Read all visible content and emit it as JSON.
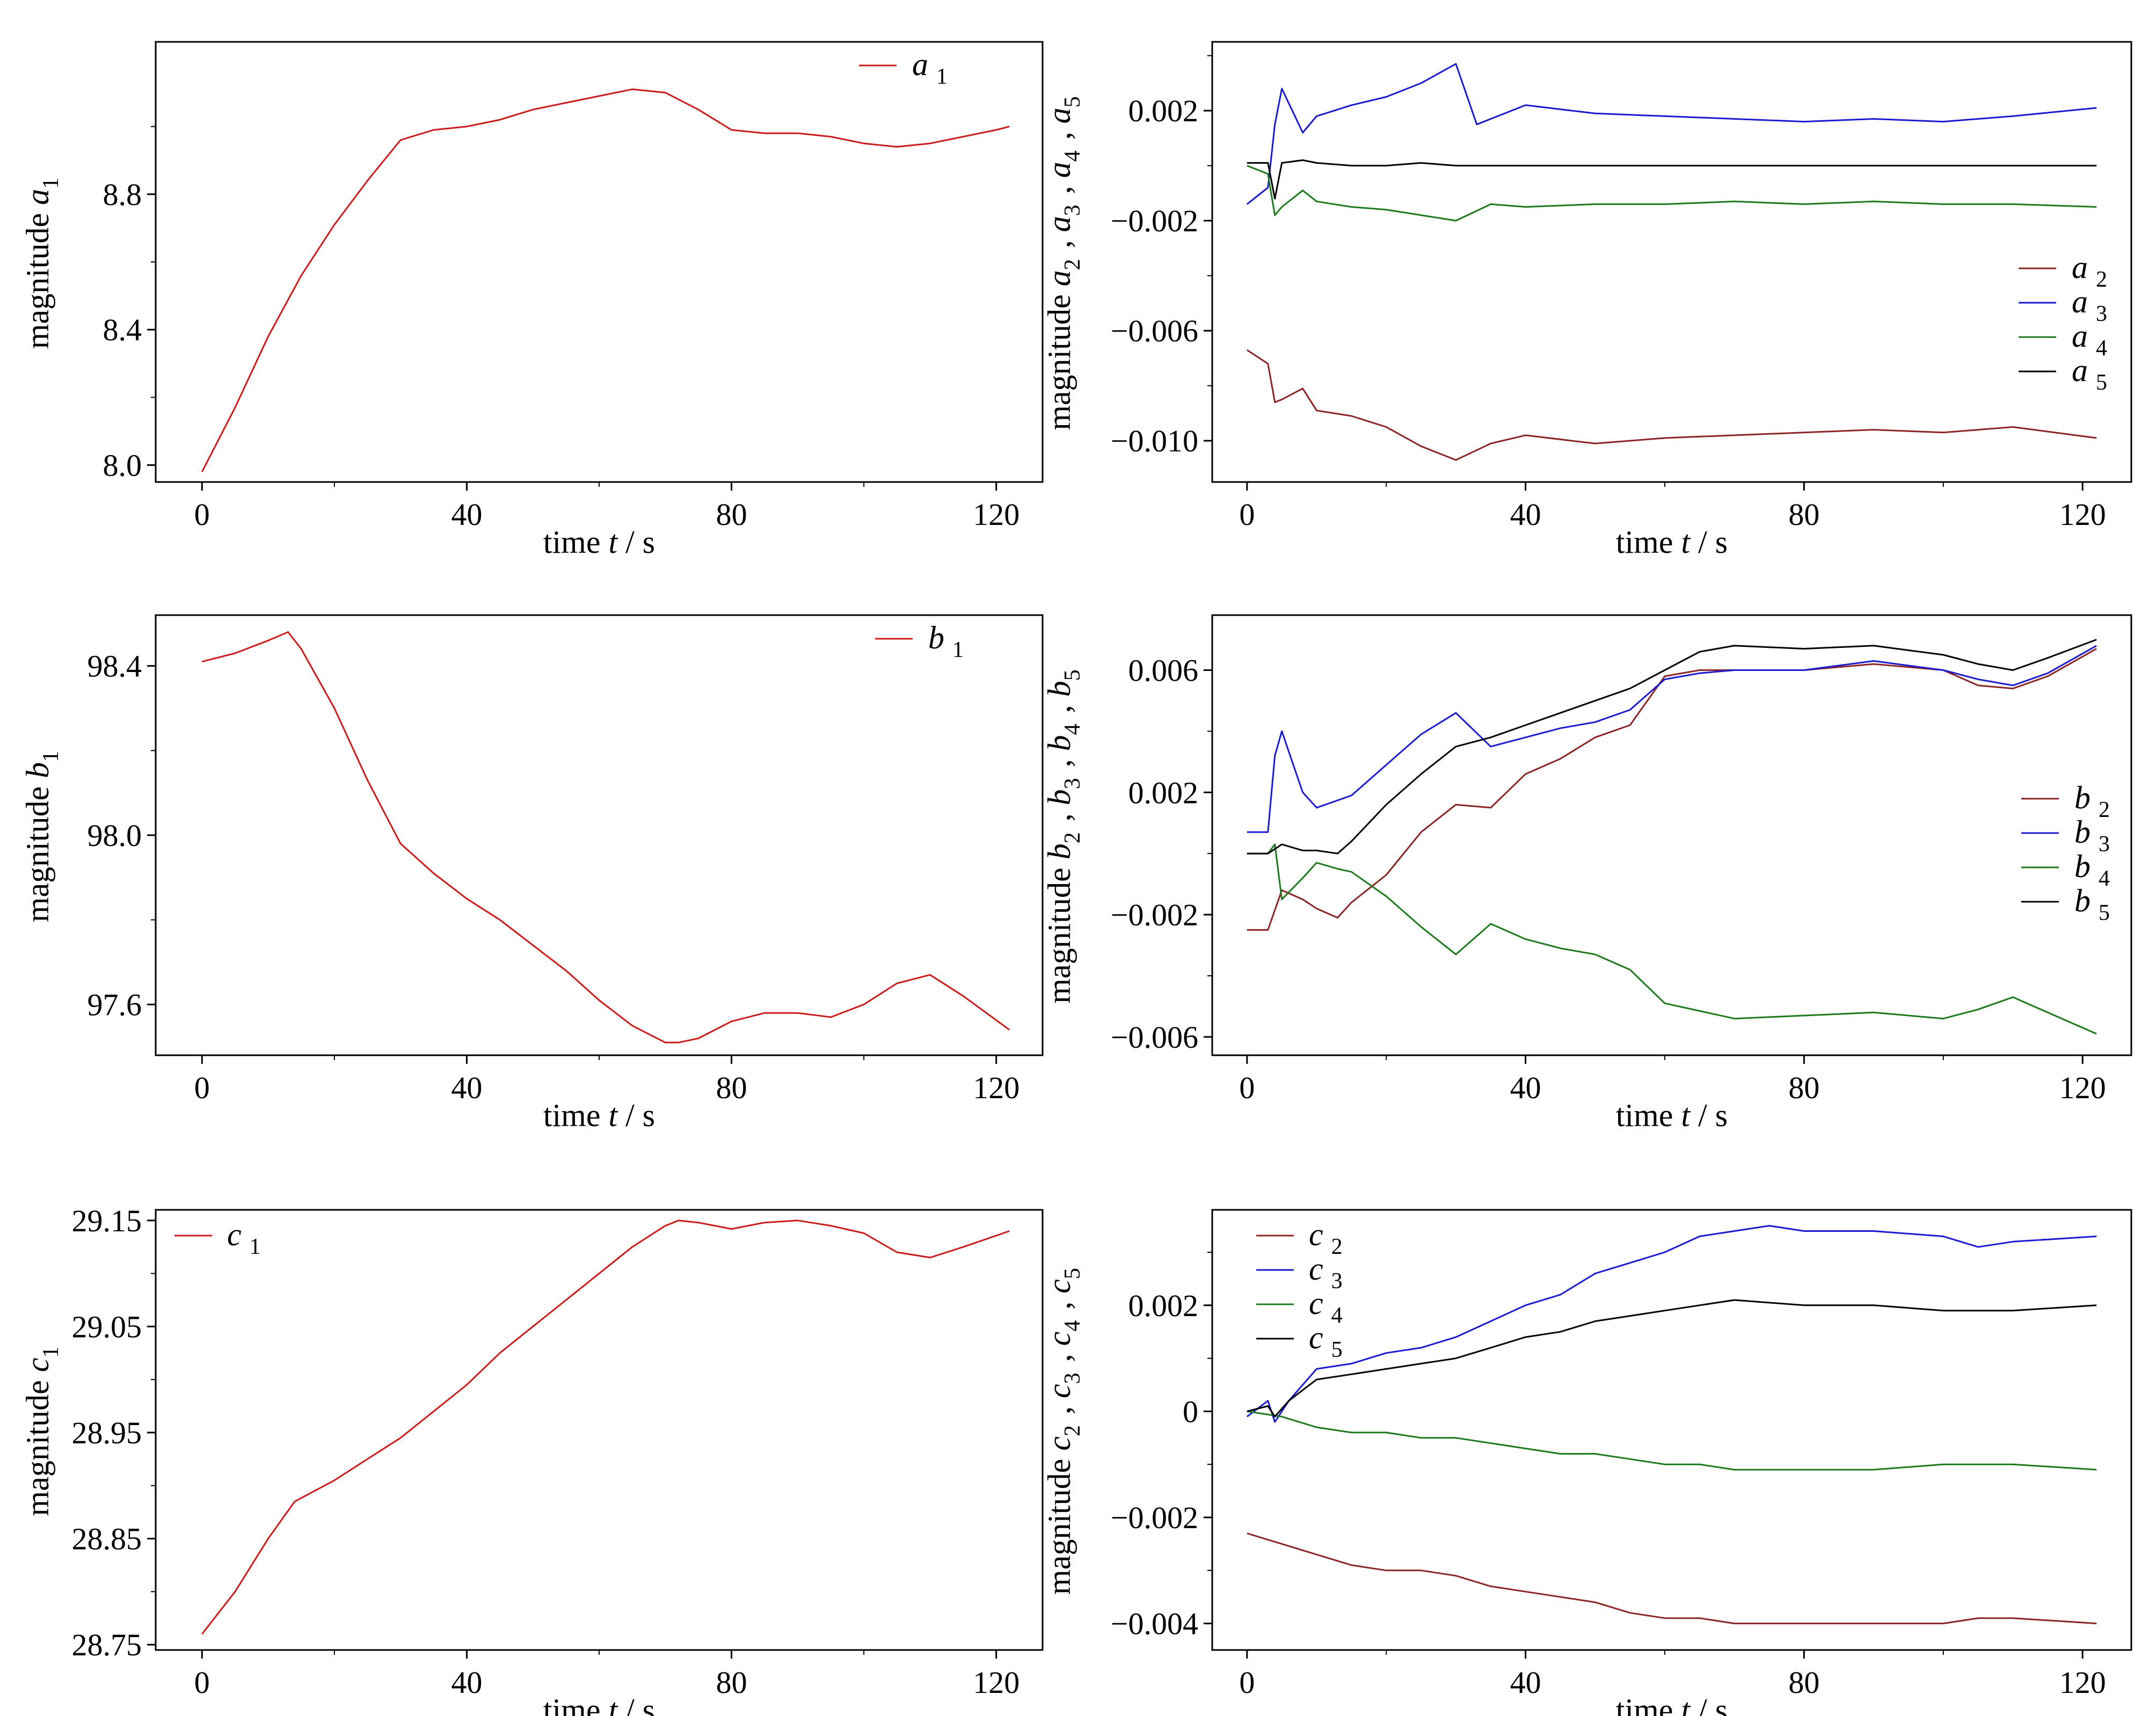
{
  "colors": {
    "red": "#cc1b1b",
    "dark_red": "#8b2525",
    "blue": "#1a1ad1",
    "green": "#1c7a1c",
    "black": "#000000"
  },
  "chart_data": [
    {
      "type": "line",
      "xlabel": "time t / s",
      "ylabel": "magnitude a1",
      "xlim": [
        -7,
        127
      ],
      "ylim": [
        7.95,
        9.25
      ],
      "x_ticks": [
        "0",
        "40",
        "80",
        "120"
      ],
      "y_ticks": [
        "8.0",
        "8.4",
        "8.8"
      ],
      "legend_position": "top-right",
      "series": [
        {
          "name": "a1",
          "color": "#cc1b1b",
          "x": [
            0,
            5,
            10,
            15,
            20,
            25,
            30,
            35,
            40,
            45,
            50,
            55,
            60,
            65,
            70,
            75,
            80,
            85,
            90,
            95,
            100,
            105,
            110,
            115,
            120,
            122
          ],
          "y": [
            7.98,
            8.17,
            8.38,
            8.56,
            8.71,
            8.84,
            8.96,
            8.99,
            9.0,
            9.02,
            9.05,
            9.07,
            9.09,
            9.11,
            9.1,
            9.05,
            8.99,
            8.98,
            8.98,
            8.97,
            8.95,
            8.94,
            8.95,
            8.97,
            8.99,
            9.0
          ]
        }
      ]
    },
    {
      "type": "line",
      "xlabel": "time t / s",
      "ylabel": "magnitude a2 , a3 , a4 , a5",
      "xlim": [
        -5,
        127
      ],
      "ylim": [
        -0.0115,
        0.0045
      ],
      "x_ticks": [
        "0",
        "40",
        "80",
        "120"
      ],
      "y_ticks": [
        "0.002",
        "−0.002",
        "−0.006",
        "−0.010"
      ],
      "legend_position": "center-right",
      "series": [
        {
          "name": "a2",
          "color": "#8b2525",
          "x": [
            0,
            3,
            4,
            5,
            8,
            10,
            15,
            20,
            25,
            30,
            35,
            40,
            50,
            60,
            70,
            80,
            90,
            100,
            110,
            122
          ],
          "y": [
            -0.0067,
            -0.0072,
            -0.0086,
            -0.0085,
            -0.0081,
            -0.0089,
            -0.0091,
            -0.0095,
            -0.0102,
            -0.0107,
            -0.0101,
            -0.0098,
            -0.0101,
            -0.0099,
            -0.0098,
            -0.0097,
            -0.0096,
            -0.0097,
            -0.0095,
            -0.0099
          ]
        },
        {
          "name": "a3",
          "color": "#1a1ad1",
          "x": [
            0,
            3,
            4,
            5,
            8,
            10,
            15,
            20,
            25,
            30,
            33,
            40,
            50,
            60,
            70,
            80,
            90,
            100,
            110,
            122
          ],
          "y": [
            -0.0014,
            -0.0008,
            0.0015,
            0.0028,
            0.0012,
            0.0018,
            0.0022,
            0.0025,
            0.003,
            0.0037,
            0.0015,
            0.0022,
            0.0019,
            0.0018,
            0.0017,
            0.0016,
            0.0017,
            0.0016,
            0.0018,
            0.0021
          ]
        },
        {
          "name": "a4",
          "color": "#1c7a1c",
          "x": [
            0,
            3,
            4,
            5,
            8,
            10,
            15,
            20,
            25,
            30,
            35,
            40,
            50,
            60,
            70,
            80,
            90,
            100,
            110,
            122
          ],
          "y": [
            0.0,
            -0.0003,
            -0.0018,
            -0.0015,
            -0.0009,
            -0.0013,
            -0.0015,
            -0.0016,
            -0.0018,
            -0.002,
            -0.0014,
            -0.0015,
            -0.0014,
            -0.0014,
            -0.0013,
            -0.0014,
            -0.0013,
            -0.0014,
            -0.0014,
            -0.0015
          ]
        },
        {
          "name": "a5",
          "color": "#000000",
          "x": [
            0,
            3,
            4,
            5,
            8,
            10,
            15,
            20,
            25,
            30,
            35,
            40,
            50,
            60,
            70,
            80,
            90,
            100,
            110,
            122
          ],
          "y": [
            0.0001,
            0.0001,
            -0.0012,
            0.0001,
            0.0002,
            0.0001,
            0.0,
            0.0,
            0.0001,
            0.0,
            0.0,
            0.0,
            0.0,
            0.0,
            0.0,
            0.0,
            0.0,
            0.0,
            0.0,
            0.0
          ]
        }
      ]
    },
    {
      "type": "line",
      "xlabel": "time t / s",
      "ylabel": "magnitude b1",
      "xlim": [
        -7,
        127
      ],
      "ylim": [
        97.48,
        98.52
      ],
      "x_ticks": [
        "0",
        "40",
        "80",
        "120"
      ],
      "y_ticks": [
        "98.4",
        "98.0",
        "97.6"
      ],
      "legend_position": "top-right",
      "series": [
        {
          "name": "b1",
          "color": "#cc1b1b",
          "x": [
            0,
            5,
            10,
            13,
            15,
            20,
            25,
            30,
            35,
            40,
            45,
            50,
            55,
            60,
            65,
            70,
            72,
            75,
            80,
            85,
            90,
            95,
            100,
            105,
            110,
            115,
            122
          ],
          "y": [
            98.41,
            98.43,
            98.46,
            98.48,
            98.44,
            98.3,
            98.13,
            97.98,
            97.91,
            97.85,
            97.8,
            97.74,
            97.68,
            97.61,
            97.55,
            97.51,
            97.51,
            97.52,
            97.56,
            97.58,
            97.58,
            97.57,
            97.6,
            97.65,
            97.67,
            97.62,
            97.54
          ]
        }
      ]
    },
    {
      "type": "line",
      "xlabel": "time t / s",
      "ylabel": "magnitude b2 , b3 , b4 , b5",
      "xlim": [
        -5,
        127
      ],
      "ylim": [
        -0.0066,
        0.0078
      ],
      "x_ticks": [
        "0",
        "40",
        "80",
        "120"
      ],
      "y_ticks": [
        "0.006",
        "0.002",
        "−0.002",
        "−0.006"
      ],
      "legend_position": "center-right",
      "series": [
        {
          "name": "b2",
          "color": "#8b2525",
          "x": [
            0,
            3,
            5,
            8,
            10,
            13,
            15,
            20,
            25,
            30,
            35,
            40,
            45,
            50,
            55,
            60,
            65,
            70,
            80,
            90,
            100,
            105,
            110,
            115,
            122
          ],
          "y": [
            -0.0025,
            -0.0025,
            -0.0012,
            -0.0015,
            -0.0018,
            -0.0021,
            -0.0016,
            -0.0007,
            0.0007,
            0.0016,
            0.0015,
            0.0026,
            0.0031,
            0.0038,
            0.0042,
            0.0058,
            0.006,
            0.006,
            0.006,
            0.0062,
            0.006,
            0.0055,
            0.0054,
            0.0058,
            0.0067
          ]
        },
        {
          "name": "b3",
          "color": "#1a1ad1",
          "x": [
            0,
            3,
            4,
            5,
            8,
            10,
            15,
            20,
            25,
            30,
            35,
            40,
            45,
            50,
            55,
            60,
            65,
            70,
            80,
            90,
            100,
            105,
            110,
            115,
            122
          ],
          "y": [
            0.0007,
            0.0007,
            0.0032,
            0.004,
            0.002,
            0.0015,
            0.0019,
            0.0029,
            0.0039,
            0.0046,
            0.0035,
            0.0038,
            0.0041,
            0.0043,
            0.0047,
            0.0057,
            0.0059,
            0.006,
            0.006,
            0.0063,
            0.006,
            0.0057,
            0.0055,
            0.0059,
            0.0068
          ]
        },
        {
          "name": "b4",
          "color": "#1c7a1c",
          "x": [
            0,
            3,
            4,
            5,
            8,
            10,
            13,
            15,
            20,
            25,
            30,
            35,
            40,
            45,
            50,
            55,
            60,
            70,
            80,
            90,
            100,
            105,
            110,
            115,
            122
          ],
          "y": [
            0.0,
            0.0,
            0.0003,
            -0.0015,
            -0.0008,
            -0.0003,
            -0.0005,
            -0.0006,
            -0.0014,
            -0.0024,
            -0.0033,
            -0.0023,
            -0.0028,
            -0.0031,
            -0.0033,
            -0.0038,
            -0.0049,
            -0.0054,
            -0.0053,
            -0.0052,
            -0.0054,
            -0.0051,
            -0.0047,
            -0.0052,
            -0.0059
          ]
        },
        {
          "name": "b5",
          "color": "#000000",
          "x": [
            0,
            3,
            5,
            8,
            10,
            13,
            15,
            20,
            25,
            30,
            35,
            40,
            45,
            50,
            55,
            60,
            65,
            70,
            80,
            90,
            100,
            105,
            110,
            115,
            122
          ],
          "y": [
            0.0,
            0.0,
            0.0003,
            0.0001,
            0.0001,
            0.0,
            0.0004,
            0.0016,
            0.0026,
            0.0035,
            0.0038,
            0.0042,
            0.0046,
            0.005,
            0.0054,
            0.006,
            0.0066,
            0.0068,
            0.0067,
            0.0068,
            0.0065,
            0.0062,
            0.006,
            0.0064,
            0.007
          ]
        }
      ]
    },
    {
      "type": "line",
      "xlabel": "time t / s",
      "ylabel": "magnitude c1",
      "xlim": [
        -7,
        127
      ],
      "ylim": [
        28.745,
        29.16
      ],
      "x_ticks": [
        "0",
        "40",
        "80",
        "120"
      ],
      "y_ticks": [
        "29.15",
        "29.05",
        "28.95",
        "28.85",
        "28.75"
      ],
      "legend_position": "top-left",
      "series": [
        {
          "name": "c1",
          "color": "#cc1b1b",
          "x": [
            0,
            5,
            10,
            14,
            20,
            25,
            30,
            35,
            40,
            45,
            50,
            55,
            60,
            65,
            70,
            72,
            75,
            80,
            85,
            90,
            95,
            100,
            105,
            110,
            115,
            122
          ],
          "y": [
            28.76,
            28.8,
            28.85,
            28.885,
            28.905,
            28.925,
            28.945,
            28.97,
            28.995,
            29.025,
            29.05,
            29.075,
            29.1,
            29.125,
            29.145,
            29.15,
            29.148,
            29.142,
            29.148,
            29.15,
            29.145,
            29.138,
            29.12,
            29.115,
            29.125,
            29.14
          ]
        }
      ]
    },
    {
      "type": "line",
      "xlabel": "time t / s",
      "ylabel": "magnitude c2 , c3 , c4 , c5",
      "xlim": [
        -5,
        127
      ],
      "ylim": [
        -0.0045,
        0.0038
      ],
      "x_ticks": [
        "0",
        "40",
        "80",
        "120"
      ],
      "y_ticks": [
        "0.002",
        "0",
        "−0.002",
        "−0.004"
      ],
      "legend_position": "top-left",
      "series": [
        {
          "name": "c2",
          "color": "#8b2525",
          "x": [
            0,
            5,
            10,
            15,
            20,
            25,
            30,
            35,
            40,
            45,
            50,
            55,
            60,
            65,
            70,
            80,
            90,
            100,
            105,
            110,
            122
          ],
          "y": [
            -0.0023,
            -0.0025,
            -0.0027,
            -0.0029,
            -0.003,
            -0.003,
            -0.0031,
            -0.0033,
            -0.0034,
            -0.0035,
            -0.0036,
            -0.0038,
            -0.0039,
            -0.0039,
            -0.004,
            -0.004,
            -0.004,
            -0.004,
            -0.0039,
            -0.0039,
            -0.004
          ]
        },
        {
          "name": "c3",
          "color": "#1a1ad1",
          "x": [
            0,
            3,
            4,
            6,
            10,
            15,
            20,
            25,
            30,
            35,
            40,
            45,
            50,
            55,
            60,
            65,
            70,
            75,
            80,
            90,
            100,
            105,
            110,
            122
          ],
          "y": [
            -0.0001,
            0.0002,
            -0.0002,
            0.0002,
            0.0008,
            0.0009,
            0.0011,
            0.0012,
            0.0014,
            0.0017,
            0.002,
            0.0022,
            0.0026,
            0.0028,
            0.003,
            0.0033,
            0.0034,
            0.0035,
            0.0034,
            0.0034,
            0.0033,
            0.0031,
            0.0032,
            0.0033
          ]
        },
        {
          "name": "c4",
          "color": "#1c7a1c",
          "x": [
            0,
            5,
            10,
            15,
            20,
            25,
            30,
            35,
            40,
            45,
            50,
            55,
            60,
            65,
            70,
            80,
            90,
            100,
            110,
            122
          ],
          "y": [
            0.0,
            -0.0001,
            -0.0003,
            -0.0004,
            -0.0004,
            -0.0005,
            -0.0005,
            -0.0006,
            -0.0007,
            -0.0008,
            -0.0008,
            -0.0009,
            -0.001,
            -0.001,
            -0.0011,
            -0.0011,
            -0.0011,
            -0.001,
            -0.001,
            -0.0011
          ]
        },
        {
          "name": "c5",
          "color": "#000000",
          "x": [
            0,
            3,
            4,
            6,
            10,
            15,
            20,
            25,
            30,
            35,
            40,
            45,
            50,
            55,
            60,
            65,
            70,
            80,
            90,
            100,
            110,
            122
          ],
          "y": [
            0.0,
            0.0001,
            -0.0001,
            0.0002,
            0.0006,
            0.0007,
            0.0008,
            0.0009,
            0.001,
            0.0012,
            0.0014,
            0.0015,
            0.0017,
            0.0018,
            0.0019,
            0.002,
            0.0021,
            0.002,
            0.002,
            0.0019,
            0.0019,
            0.002
          ]
        }
      ]
    }
  ]
}
